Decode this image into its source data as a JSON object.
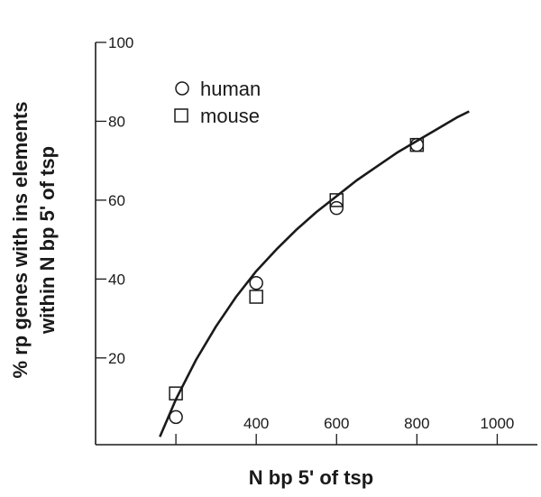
{
  "chart_data": {
    "type": "scatter",
    "xlabel": "N bp 5' of tsp",
    "ylabel_lines": [
      "% rp genes with ins elements",
      "within N bp 5' of tsp"
    ],
    "xlim": [
      0,
      1100
    ],
    "ylim": [
      -2,
      100
    ],
    "x_ticks": [
      200,
      400,
      600,
      800,
      1000
    ],
    "x_tick_labels": [
      "",
      "400",
      "600",
      "800",
      "1000"
    ],
    "y_ticks": [
      20,
      40,
      60,
      80,
      100
    ],
    "y_tick_labels": [
      "20",
      "40",
      "60",
      "80",
      "100"
    ],
    "grid": false,
    "legend_position": "top-left",
    "series": [
      {
        "name": "human",
        "marker": "circle",
        "x": [
          200,
          400,
          600,
          800
        ],
        "y": [
          5,
          39,
          58,
          74
        ]
      },
      {
        "name": "mouse",
        "marker": "square",
        "x": [
          200,
          400,
          600,
          800
        ],
        "y": [
          11,
          35.5,
          60,
          74
        ]
      }
    ],
    "fit_curve": {
      "type": "line",
      "x": [
        160,
        200,
        250,
        300,
        350,
        400,
        450,
        500,
        550,
        600,
        650,
        700,
        750,
        800,
        850,
        900,
        930
      ],
      "y": [
        0,
        9.5,
        19.5,
        28,
        35.5,
        42,
        47.5,
        52.5,
        57,
        61,
        65,
        68.5,
        72,
        75,
        78,
        81,
        82.5
      ]
    }
  }
}
